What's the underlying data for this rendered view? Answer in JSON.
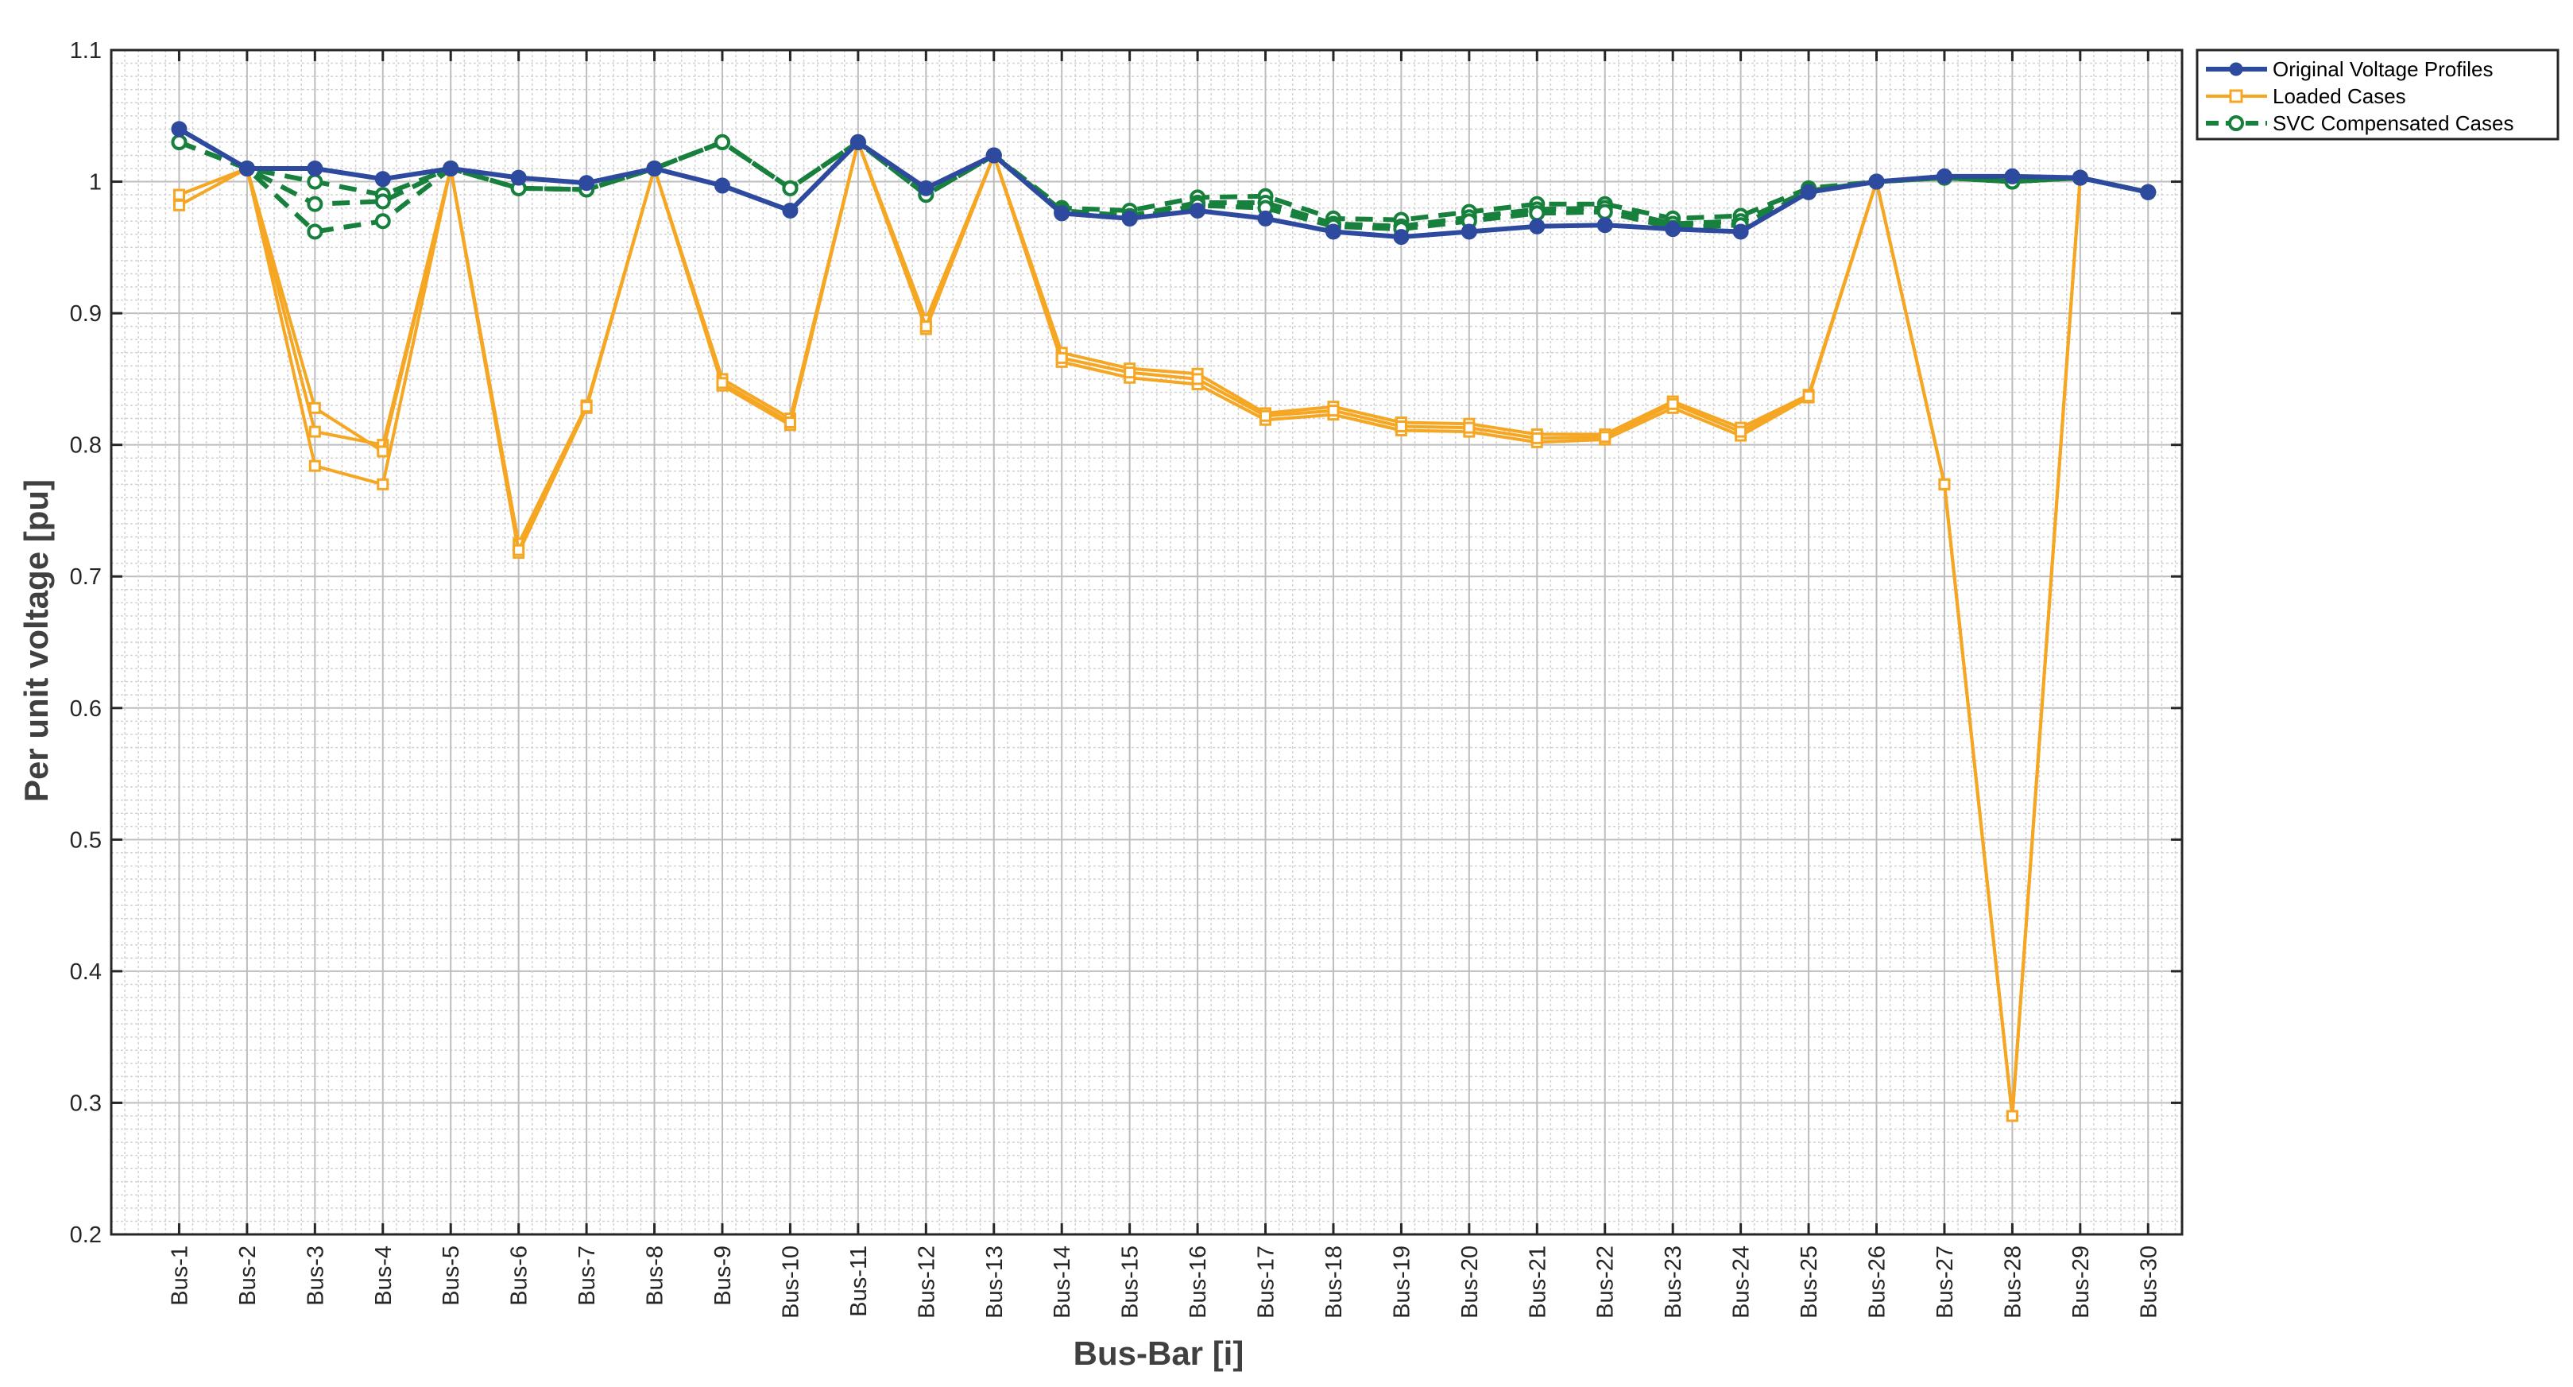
{
  "chart_data": {
    "type": "line",
    "title": "",
    "xlabel": "Bus-Bar [i]",
    "ylabel": "Per unit voltage [pu]",
    "ylim": [
      0.2,
      1.1
    ],
    "yticks": [
      "0.2",
      "0.3",
      "0.4",
      "0.5",
      "0.6",
      "0.7",
      "0.8",
      "0.9",
      "1",
      "1.1"
    ],
    "categories": [
      "Bus-1",
      "Bus-2",
      "Bus-3",
      "Bus-4",
      "Bus-5",
      "Bus-6",
      "Bus-7",
      "Bus-8",
      "Bus-9",
      "Bus-10",
      "Bus-11",
      "Bus-12",
      "Bus-13",
      "Bus-14",
      "Bus-15",
      "Bus-16",
      "Bus-17",
      "Bus-18",
      "Bus-19",
      "Bus-20",
      "Bus-21",
      "Bus-22",
      "Bus-23",
      "Bus-24",
      "Bus-25",
      "Bus-26",
      "Bus-27",
      "Bus-28",
      "Bus-29",
      "Bus-30"
    ],
    "grid": "major and minor",
    "legend_position": "outside top-right",
    "legend": [
      "Original Voltage Profiles",
      "Loaded Cases",
      "SVC Compensated Cases"
    ],
    "colors": {
      "original": "#2E4A9E",
      "loaded": "#F5A623",
      "svc": "#17803D"
    },
    "series": [
      {
        "name": "Original Voltage Profiles",
        "group": "original",
        "values": [
          1.04,
          1.01,
          1.01,
          1.002,
          1.01,
          1.003,
          0.999,
          1.01,
          0.997,
          0.978,
          1.03,
          0.995,
          1.02,
          0.976,
          0.972,
          0.978,
          0.972,
          0.962,
          0.958,
          0.962,
          0.966,
          0.967,
          0.964,
          0.962,
          0.992,
          1.0,
          1.004,
          1.004,
          1.003,
          0.992
        ]
      },
      {
        "group": "loaded",
        "values": [
          0.99,
          1.01,
          0.81,
          0.8,
          1.01,
          0.725,
          0.83,
          1.01,
          0.85,
          0.82,
          1.03,
          0.895,
          1.02,
          0.87,
          0.858,
          0.854,
          0.824,
          0.829,
          0.817,
          0.816,
          0.808,
          0.808,
          0.833,
          0.813,
          0.838,
          1.0,
          0.77,
          0.29,
          1.003,
          0.992
        ]
      },
      {
        "group": "loaded",
        "values": [
          0.982,
          1.01,
          0.828,
          0.795,
          1.01,
          0.718,
          0.828,
          1.01,
          0.845,
          0.815,
          1.03,
          0.888,
          1.02,
          0.863,
          0.851,
          0.846,
          0.819,
          0.823,
          0.811,
          0.81,
          0.802,
          0.804,
          0.828,
          0.807,
          0.836,
          1.0,
          0.77,
          0.29,
          1.003,
          0.992
        ]
      },
      {
        "group": "loaded",
        "values": [
          0.99,
          1.01,
          0.784,
          0.77,
          1.01,
          0.72,
          0.829,
          1.01,
          0.847,
          0.817,
          1.03,
          0.89,
          1.02,
          0.866,
          0.855,
          0.85,
          0.822,
          0.826,
          0.814,
          0.813,
          0.805,
          0.806,
          0.831,
          0.81,
          0.837,
          1.0,
          0.77,
          0.29,
          1.003,
          0.992
        ]
      },
      {
        "group": "svc",
        "values": [
          1.03,
          1.01,
          1.0,
          0.99,
          1.01,
          0.995,
          0.994,
          1.01,
          1.03,
          0.995,
          1.03,
          0.99,
          1.02,
          0.98,
          0.978,
          0.988,
          0.989,
          0.972,
          0.971,
          0.977,
          0.983,
          0.983,
          0.972,
          0.974,
          0.995,
          1.0,
          1.003,
          1.0,
          1.003,
          0.992
        ]
      },
      {
        "group": "svc",
        "values": [
          1.03,
          1.01,
          0.983,
          0.985,
          1.01,
          0.995,
          0.994,
          1.01,
          1.03,
          0.995,
          1.03,
          0.99,
          1.02,
          0.978,
          0.974,
          0.984,
          0.984,
          0.968,
          0.966,
          0.973,
          0.979,
          0.98,
          0.968,
          0.97,
          0.993,
          1.0,
          1.003,
          1.0,
          1.003,
          0.992
        ]
      },
      {
        "group": "svc",
        "values": [
          1.03,
          1.01,
          0.962,
          0.97,
          1.01,
          0.995,
          0.994,
          1.01,
          1.03,
          0.995,
          1.03,
          0.99,
          1.02,
          0.976,
          0.972,
          0.982,
          0.98,
          0.966,
          0.964,
          0.97,
          0.976,
          0.977,
          0.965,
          0.967,
          0.992,
          1.0,
          1.003,
          1.0,
          1.003,
          0.992
        ]
      }
    ]
  }
}
